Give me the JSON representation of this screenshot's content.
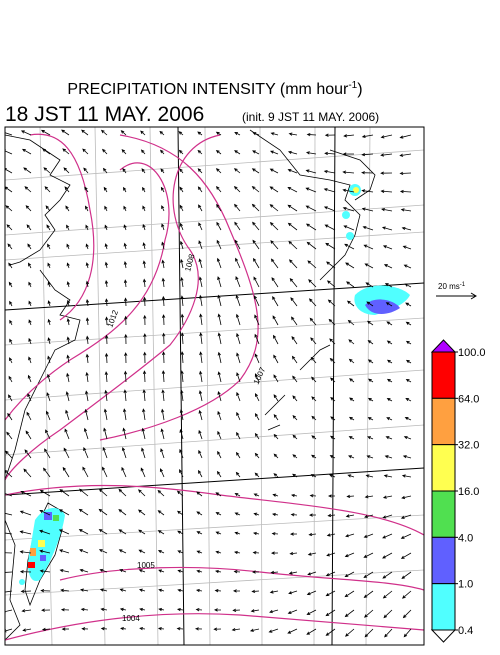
{
  "title": {
    "text": "PRECIPITATION INTENSITY (mm hour",
    "superscript": "-1",
    "close": ")"
  },
  "valid_time": "18 JST 11 MAY. 2006",
  "init_time": "(init. 9 JST 11 MAY. 2006)",
  "vector_scale": {
    "text": "20 ms",
    "superscript": "-1"
  },
  "isobar_labels": [
    "1008",
    "1012",
    "1007",
    "1005",
    "1004"
  ],
  "colorbar": {
    "ticks": [
      {
        "value": 100,
        "label": "100.0"
      },
      {
        "value": 64,
        "label": "64.0"
      },
      {
        "value": 32,
        "label": "32.0"
      },
      {
        "value": 16,
        "label": "16.0"
      },
      {
        "value": 4,
        "label": "4.0"
      },
      {
        "value": 1,
        "label": "1.0"
      },
      {
        "value": 0.4,
        "label": "0.4"
      }
    ],
    "colors": [
      "#ff0000",
      "#ffa040",
      "#ffff50",
      "#50e050",
      "#6060ff",
      "#50ffff"
    ],
    "over_color": "#b000ff",
    "under_color": "#ffffff"
  }
}
